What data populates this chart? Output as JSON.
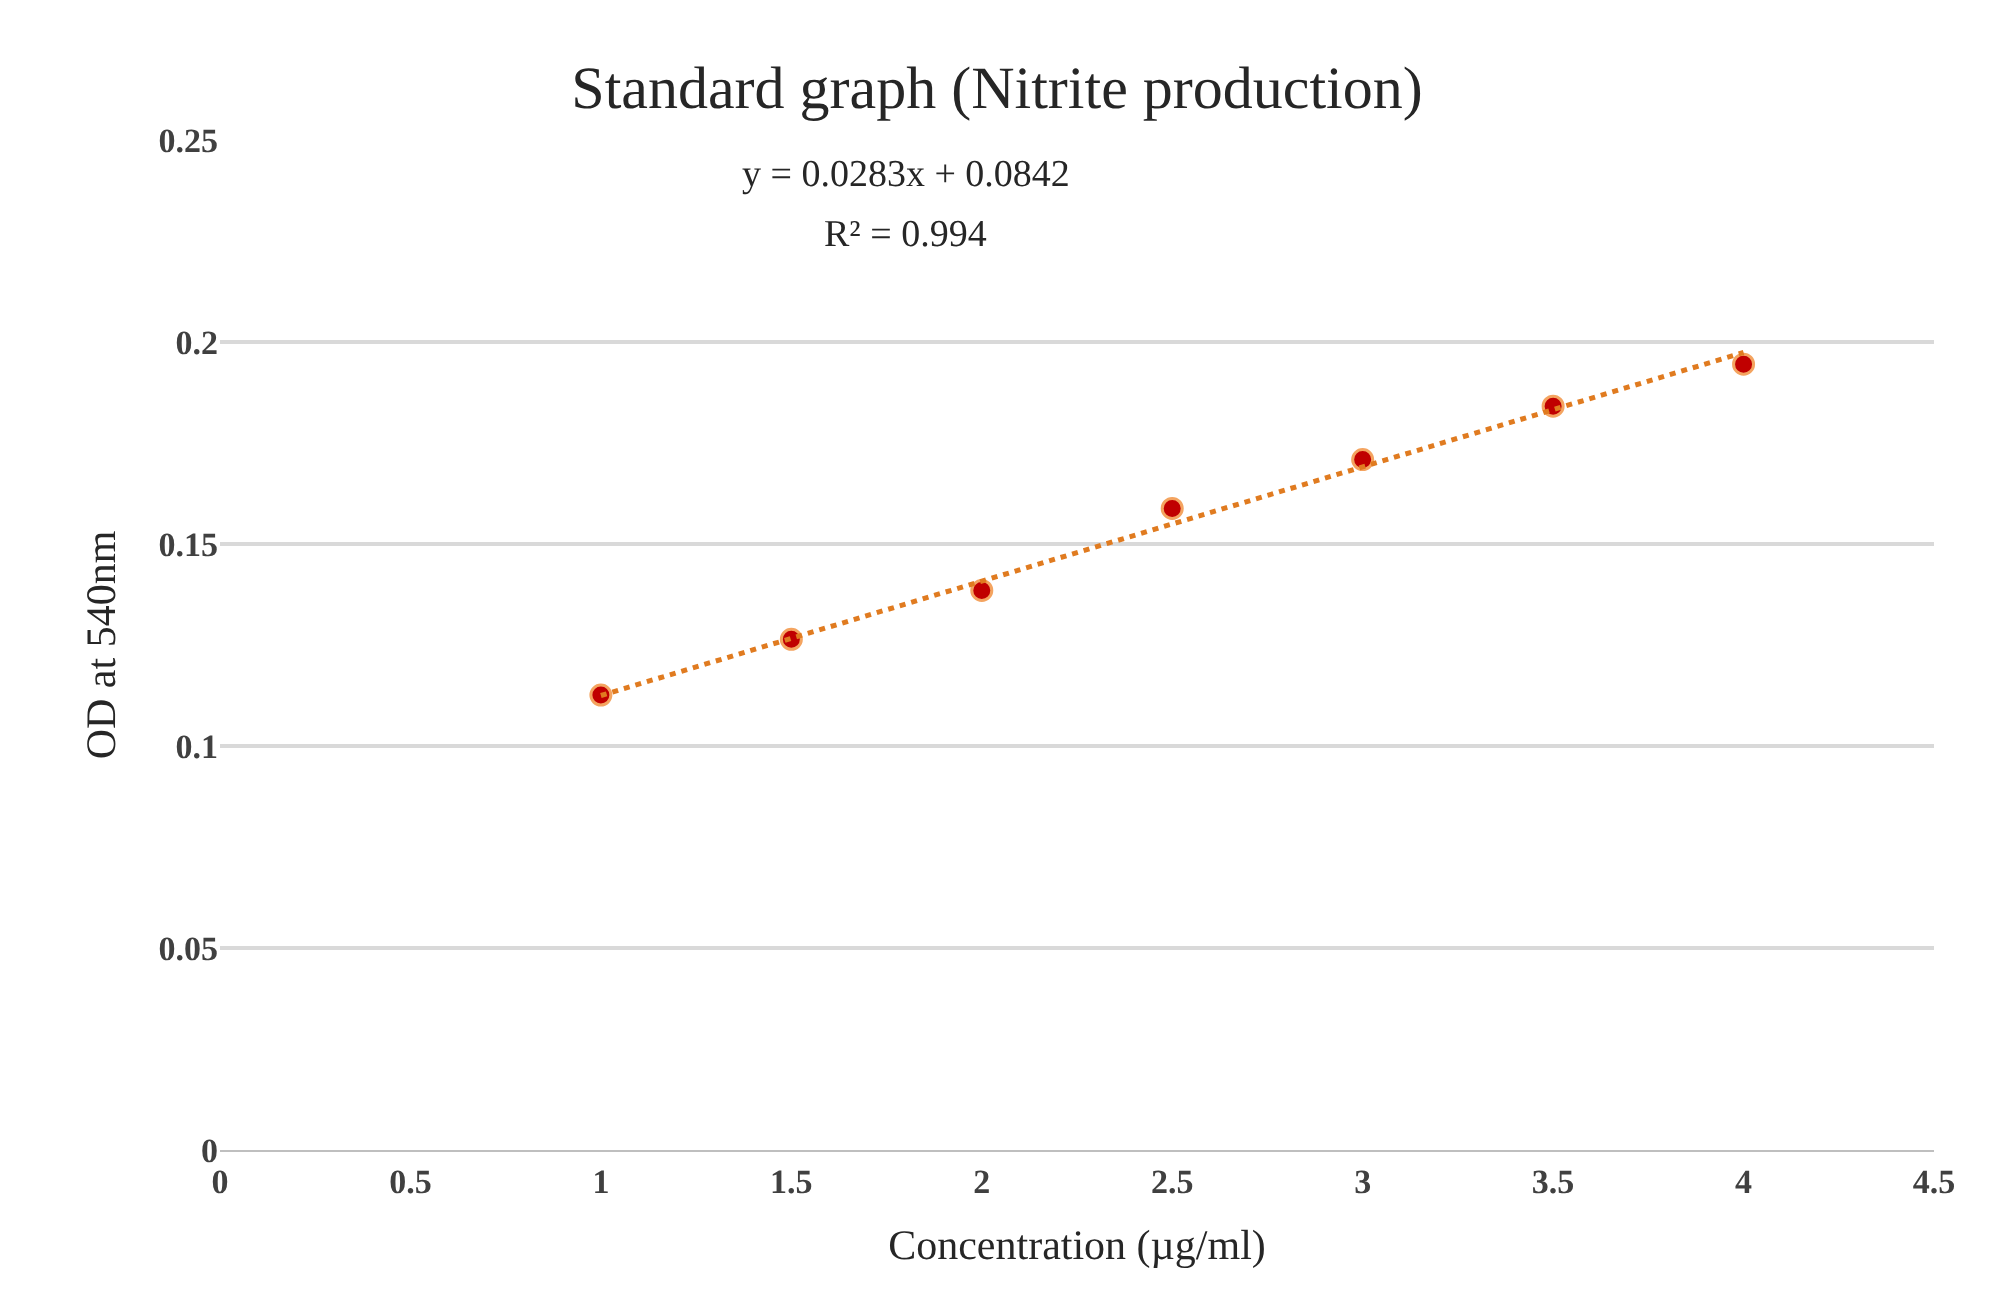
{
  "chart_data": {
    "type": "scatter",
    "title": "Standard graph (Nitrite production)",
    "xlabel": "Concentration (µg/ml)",
    "ylabel": "OD at 540nm",
    "xlim": [
      0,
      4.5
    ],
    "xticks": [
      0,
      0.5,
      1,
      1.5,
      2,
      2.5,
      3,
      3.5,
      4,
      4.5
    ],
    "ylim": [
      0,
      0.25
    ],
    "yticks": [
      0,
      0.05,
      0.1,
      0.15,
      0.2,
      0.25
    ],
    "grid": "y",
    "series": [
      {
        "color": "#c00000",
        "marker": "circle",
        "x": [
          1,
          1.5,
          2,
          2.5,
          3,
          3.5,
          4
        ],
        "values": [
          0.1126,
          0.1264,
          0.1385,
          0.1588,
          0.1709,
          0.1841,
          0.1945
        ]
      },
      {
        "type": "line",
        "color": "#e07b20",
        "line_style": "dotted",
        "x": [
          1,
          4
        ],
        "values": [
          0.1125,
          0.1974
        ]
      }
    ],
    "annotations": [
      "y = 0.0283x + 0.0842",
      "R² = 0.994"
    ]
  }
}
